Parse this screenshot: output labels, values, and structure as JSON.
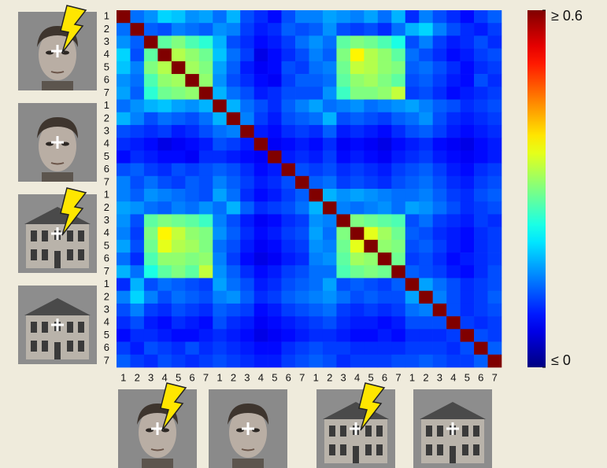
{
  "chart_data": {
    "type": "heatmap",
    "colormap": "jet",
    "rows": [
      "1",
      "2",
      "3",
      "4",
      "5",
      "6",
      "7",
      "1",
      "2",
      "3",
      "4",
      "5",
      "6",
      "7",
      "1",
      "2",
      "3",
      "4",
      "5",
      "6",
      "7",
      "1",
      "2",
      "3",
      "4",
      "5",
      "6",
      "7"
    ],
    "columns": [
      "1",
      "2",
      "3",
      "4",
      "5",
      "6",
      "7",
      "1",
      "2",
      "3",
      "4",
      "5",
      "6",
      "7",
      "1",
      "2",
      "3",
      "4",
      "5",
      "6",
      "7",
      "1",
      "2",
      "3",
      "4",
      "5",
      "6",
      "7"
    ],
    "zlim": [
      0,
      0.6
    ],
    "colorbar_ticks": [
      {
        "value": 0.6,
        "label": "≥ 0.6"
      },
      {
        "value": 0,
        "label": "≤ 0"
      }
    ],
    "values": [
      [
        0.6,
        0.14,
        0.16,
        0.2,
        0.19,
        0.16,
        0.17,
        0.14,
        0.18,
        0.12,
        0.1,
        0.08,
        0.12,
        0.15,
        0.15,
        0.17,
        0.16,
        0.15,
        0.17,
        0.14,
        0.18,
        0.1,
        0.15,
        0.12,
        0.1,
        0.08,
        0.11,
        0.13
      ],
      [
        0.14,
        0.6,
        0.13,
        0.12,
        0.15,
        0.14,
        0.13,
        0.16,
        0.15,
        0.11,
        0.09,
        0.1,
        0.13,
        0.12,
        0.13,
        0.16,
        0.12,
        0.11,
        0.12,
        0.1,
        0.14,
        0.18,
        0.2,
        0.15,
        0.12,
        0.1,
        0.09,
        0.11
      ],
      [
        0.16,
        0.13,
        0.6,
        0.28,
        0.3,
        0.27,
        0.25,
        0.18,
        0.12,
        0.1,
        0.08,
        0.09,
        0.11,
        0.14,
        0.16,
        0.14,
        0.28,
        0.3,
        0.29,
        0.27,
        0.24,
        0.12,
        0.15,
        0.11,
        0.09,
        0.1,
        0.12,
        0.1
      ],
      [
        0.2,
        0.12,
        0.28,
        0.6,
        0.33,
        0.31,
        0.29,
        0.19,
        0.14,
        0.11,
        0.06,
        0.08,
        0.1,
        0.12,
        0.15,
        0.13,
        0.3,
        0.38,
        0.33,
        0.31,
        0.28,
        0.14,
        0.12,
        0.1,
        0.08,
        0.09,
        0.11,
        0.12
      ],
      [
        0.19,
        0.15,
        0.3,
        0.33,
        0.6,
        0.32,
        0.3,
        0.17,
        0.13,
        0.09,
        0.07,
        0.08,
        0.12,
        0.11,
        0.14,
        0.15,
        0.29,
        0.34,
        0.33,
        0.31,
        0.3,
        0.13,
        0.14,
        0.12,
        0.1,
        0.08,
        0.1,
        0.11
      ],
      [
        0.16,
        0.14,
        0.27,
        0.31,
        0.32,
        0.6,
        0.31,
        0.16,
        0.12,
        0.1,
        0.08,
        0.07,
        0.11,
        0.13,
        0.13,
        0.14,
        0.28,
        0.31,
        0.32,
        0.3,
        0.28,
        0.12,
        0.13,
        0.11,
        0.09,
        0.08,
        0.12,
        0.1
      ],
      [
        0.17,
        0.13,
        0.25,
        0.29,
        0.3,
        0.31,
        0.6,
        0.18,
        0.14,
        0.12,
        0.09,
        0.1,
        0.12,
        0.12,
        0.12,
        0.16,
        0.26,
        0.3,
        0.3,
        0.31,
        0.34,
        0.11,
        0.12,
        0.1,
        0.08,
        0.09,
        0.1,
        0.11
      ],
      [
        0.14,
        0.16,
        0.18,
        0.19,
        0.17,
        0.16,
        0.18,
        0.6,
        0.18,
        0.14,
        0.12,
        0.1,
        0.13,
        0.15,
        0.17,
        0.14,
        0.15,
        0.16,
        0.14,
        0.15,
        0.16,
        0.17,
        0.15,
        0.13,
        0.12,
        0.1,
        0.11,
        0.12
      ],
      [
        0.18,
        0.15,
        0.12,
        0.14,
        0.13,
        0.12,
        0.14,
        0.18,
        0.6,
        0.15,
        0.11,
        0.09,
        0.12,
        0.13,
        0.14,
        0.18,
        0.12,
        0.13,
        0.12,
        0.11,
        0.13,
        0.14,
        0.16,
        0.12,
        0.1,
        0.09,
        0.1,
        0.11
      ],
      [
        0.12,
        0.11,
        0.1,
        0.11,
        0.09,
        0.1,
        0.12,
        0.14,
        0.15,
        0.6,
        0.09,
        0.08,
        0.1,
        0.11,
        0.1,
        0.13,
        0.09,
        0.1,
        0.09,
        0.08,
        0.1,
        0.12,
        0.13,
        0.11,
        0.09,
        0.08,
        0.09,
        0.1
      ],
      [
        0.1,
        0.09,
        0.08,
        0.06,
        0.07,
        0.08,
        0.09,
        0.12,
        0.11,
        0.09,
        0.6,
        0.07,
        0.08,
        0.09,
        0.08,
        0.1,
        0.07,
        0.08,
        0.07,
        0.06,
        0.08,
        0.09,
        0.1,
        0.08,
        0.07,
        0.06,
        0.08,
        0.09
      ],
      [
        0.08,
        0.1,
        0.09,
        0.08,
        0.08,
        0.07,
        0.1,
        0.1,
        0.09,
        0.08,
        0.07,
        0.6,
        0.09,
        0.1,
        0.09,
        0.11,
        0.08,
        0.09,
        0.08,
        0.07,
        0.09,
        0.1,
        0.11,
        0.09,
        0.08,
        0.07,
        0.08,
        0.09
      ],
      [
        0.12,
        0.13,
        0.11,
        0.1,
        0.12,
        0.11,
        0.12,
        0.13,
        0.12,
        0.1,
        0.08,
        0.09,
        0.6,
        0.12,
        0.11,
        0.12,
        0.1,
        0.11,
        0.1,
        0.09,
        0.11,
        0.12,
        0.13,
        0.11,
        0.09,
        0.08,
        0.1,
        0.11
      ],
      [
        0.15,
        0.12,
        0.14,
        0.12,
        0.11,
        0.13,
        0.12,
        0.15,
        0.13,
        0.11,
        0.09,
        0.1,
        0.12,
        0.6,
        0.13,
        0.14,
        0.11,
        0.12,
        0.11,
        0.1,
        0.12,
        0.13,
        0.14,
        0.12,
        0.1,
        0.09,
        0.11,
        0.12
      ],
      [
        0.15,
        0.13,
        0.16,
        0.15,
        0.14,
        0.13,
        0.12,
        0.17,
        0.14,
        0.1,
        0.08,
        0.09,
        0.11,
        0.13,
        0.6,
        0.18,
        0.16,
        0.17,
        0.16,
        0.15,
        0.14,
        0.14,
        0.15,
        0.13,
        0.11,
        0.1,
        0.12,
        0.13
      ],
      [
        0.17,
        0.16,
        0.14,
        0.13,
        0.15,
        0.14,
        0.16,
        0.14,
        0.18,
        0.13,
        0.1,
        0.11,
        0.12,
        0.14,
        0.18,
        0.6,
        0.15,
        0.14,
        0.15,
        0.16,
        0.14,
        0.17,
        0.16,
        0.14,
        0.12,
        0.1,
        0.11,
        0.12
      ],
      [
        0.16,
        0.12,
        0.28,
        0.3,
        0.29,
        0.28,
        0.26,
        0.15,
        0.12,
        0.09,
        0.07,
        0.08,
        0.1,
        0.11,
        0.16,
        0.15,
        0.6,
        0.3,
        0.29,
        0.28,
        0.27,
        0.12,
        0.14,
        0.11,
        0.1,
        0.09,
        0.11,
        0.1
      ],
      [
        0.15,
        0.11,
        0.3,
        0.38,
        0.34,
        0.31,
        0.3,
        0.16,
        0.13,
        0.1,
        0.08,
        0.09,
        0.11,
        0.12,
        0.17,
        0.14,
        0.3,
        0.6,
        0.36,
        0.32,
        0.29,
        0.13,
        0.12,
        0.1,
        0.09,
        0.08,
        0.1,
        0.11
      ],
      [
        0.17,
        0.12,
        0.29,
        0.36,
        0.33,
        0.32,
        0.3,
        0.14,
        0.12,
        0.09,
        0.07,
        0.08,
        0.1,
        0.11,
        0.16,
        0.15,
        0.29,
        0.36,
        0.6,
        0.31,
        0.3,
        0.12,
        0.13,
        0.11,
        0.09,
        0.08,
        0.1,
        0.11
      ],
      [
        0.14,
        0.1,
        0.27,
        0.31,
        0.31,
        0.3,
        0.31,
        0.15,
        0.11,
        0.08,
        0.06,
        0.07,
        0.09,
        0.1,
        0.15,
        0.16,
        0.28,
        0.32,
        0.31,
        0.6,
        0.29,
        0.11,
        0.12,
        0.1,
        0.08,
        0.09,
        0.1,
        0.11
      ],
      [
        0.18,
        0.14,
        0.24,
        0.28,
        0.3,
        0.28,
        0.34,
        0.16,
        0.13,
        0.1,
        0.08,
        0.09,
        0.11,
        0.12,
        0.14,
        0.14,
        0.27,
        0.29,
        0.3,
        0.29,
        0.6,
        0.13,
        0.12,
        0.11,
        0.09,
        0.08,
        0.1,
        0.12
      ],
      [
        0.1,
        0.18,
        0.12,
        0.14,
        0.13,
        0.12,
        0.11,
        0.17,
        0.14,
        0.12,
        0.09,
        0.1,
        0.12,
        0.13,
        0.14,
        0.17,
        0.12,
        0.13,
        0.12,
        0.11,
        0.13,
        0.6,
        0.17,
        0.14,
        0.12,
        0.1,
        0.11,
        0.12
      ],
      [
        0.15,
        0.2,
        0.15,
        0.12,
        0.14,
        0.13,
        0.12,
        0.15,
        0.16,
        0.13,
        0.1,
        0.11,
        0.13,
        0.14,
        0.15,
        0.16,
        0.14,
        0.12,
        0.13,
        0.12,
        0.12,
        0.17,
        0.6,
        0.15,
        0.12,
        0.1,
        0.11,
        0.13
      ],
      [
        0.12,
        0.15,
        0.11,
        0.1,
        0.12,
        0.11,
        0.1,
        0.13,
        0.12,
        0.11,
        0.08,
        0.09,
        0.11,
        0.12,
        0.13,
        0.14,
        0.11,
        0.1,
        0.11,
        0.1,
        0.11,
        0.14,
        0.15,
        0.6,
        0.12,
        0.1,
        0.11,
        0.12
      ],
      [
        0.1,
        0.12,
        0.09,
        0.08,
        0.1,
        0.09,
        0.08,
        0.12,
        0.1,
        0.09,
        0.07,
        0.08,
        0.09,
        0.1,
        0.11,
        0.12,
        0.1,
        0.09,
        0.09,
        0.08,
        0.09,
        0.12,
        0.12,
        0.12,
        0.6,
        0.11,
        0.1,
        0.11
      ],
      [
        0.08,
        0.1,
        0.1,
        0.09,
        0.08,
        0.08,
        0.09,
        0.1,
        0.09,
        0.08,
        0.06,
        0.07,
        0.08,
        0.09,
        0.1,
        0.1,
        0.09,
        0.08,
        0.08,
        0.09,
        0.08,
        0.1,
        0.1,
        0.1,
        0.11,
        0.6,
        0.12,
        0.11
      ],
      [
        0.11,
        0.09,
        0.12,
        0.11,
        0.1,
        0.12,
        0.1,
        0.11,
        0.1,
        0.09,
        0.08,
        0.08,
        0.1,
        0.11,
        0.12,
        0.11,
        0.11,
        0.1,
        0.1,
        0.1,
        0.1,
        0.11,
        0.11,
        0.11,
        0.1,
        0.12,
        0.6,
        0.13
      ],
      [
        0.13,
        0.11,
        0.1,
        0.12,
        0.11,
        0.1,
        0.11,
        0.12,
        0.11,
        0.1,
        0.09,
        0.09,
        0.11,
        0.12,
        0.13,
        0.12,
        0.1,
        0.11,
        0.11,
        0.11,
        0.12,
        0.12,
        0.13,
        0.12,
        0.11,
        0.11,
        0.13,
        0.6
      ]
    ]
  }
}
